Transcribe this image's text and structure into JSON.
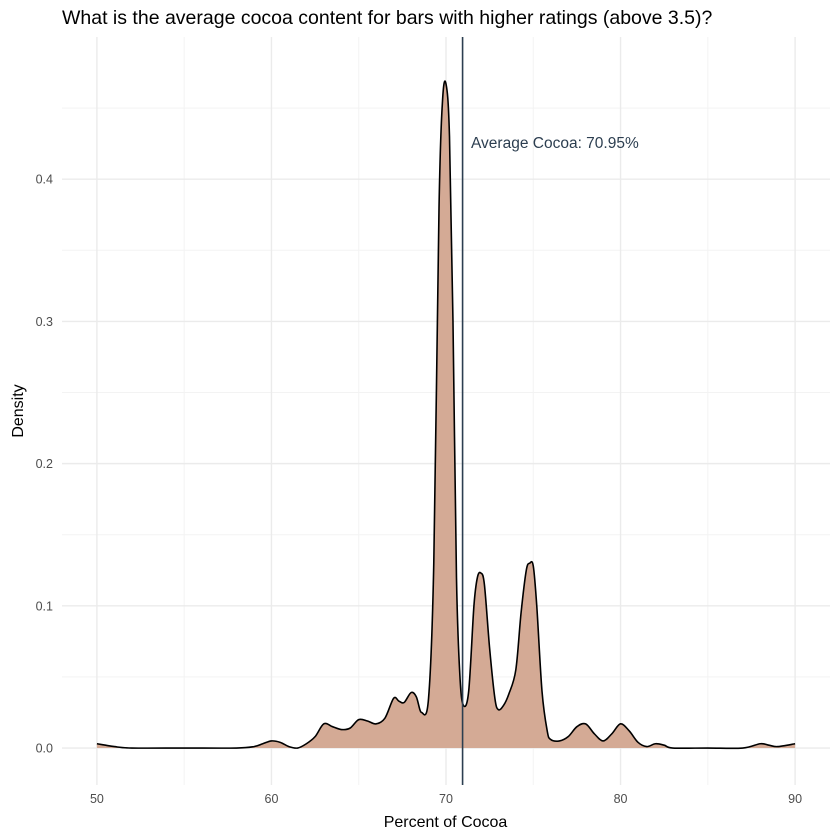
{
  "chart_data": {
    "type": "area",
    "title": "What is the average cocoa content for bars with higher ratings (above 3.5)?",
    "xlabel": "Percent of Cocoa",
    "ylabel": "Density",
    "xlim": [
      48,
      92
    ],
    "ylim": [
      -0.026,
      0.5
    ],
    "x_ticks": [
      50,
      60,
      70,
      80,
      90
    ],
    "x_tick_labels": [
      "50",
      "60",
      "70",
      "80",
      "90"
    ],
    "y_ticks": [
      0.0,
      0.1,
      0.2,
      0.3,
      0.4
    ],
    "y_tick_labels": [
      "0.0",
      "0.1",
      "0.2",
      "0.3",
      "0.4"
    ],
    "grid": true,
    "fill_color": "#d4aa95",
    "line_color": "#000000",
    "vline_color": "#2c3e50",
    "series": [
      {
        "x": [
          50,
          50.5,
          51,
          52,
          55,
          58,
          59,
          59.5,
          60,
          60.5,
          61,
          61.5,
          62,
          62.5,
          63,
          63.5,
          64,
          64.5,
          65,
          65.5,
          66,
          66.5,
          67,
          67.3,
          67.6,
          68,
          68.3,
          68.6,
          69,
          69.3,
          69.6,
          69.8,
          70,
          70.2,
          70.4,
          70.6,
          70.8,
          71,
          71.3,
          71.6,
          71.8,
          72,
          72.2,
          72.5,
          72.8,
          73,
          73.3,
          73.6,
          74,
          74.3,
          74.6,
          74.8,
          75,
          75.2,
          75.5,
          75.8,
          76,
          76.5,
          77,
          77.5,
          78,
          78.5,
          79,
          79.5,
          80,
          80.5,
          81,
          81.5,
          82,
          82.5,
          83,
          85,
          87,
          88,
          88.5,
          89,
          90
        ],
        "y": [
          0.003,
          0.002,
          0.001,
          0.0,
          0.0,
          0.0,
          0.001,
          0.003,
          0.005,
          0.004,
          0.001,
          0.0,
          0.003,
          0.008,
          0.017,
          0.015,
          0.013,
          0.014,
          0.02,
          0.019,
          0.017,
          0.021,
          0.035,
          0.033,
          0.032,
          0.039,
          0.036,
          0.025,
          0.035,
          0.13,
          0.38,
          0.455,
          0.467,
          0.43,
          0.3,
          0.12,
          0.05,
          0.03,
          0.04,
          0.1,
          0.12,
          0.123,
          0.115,
          0.07,
          0.035,
          0.027,
          0.03,
          0.038,
          0.055,
          0.095,
          0.125,
          0.13,
          0.128,
          0.1,
          0.04,
          0.012,
          0.006,
          0.005,
          0.008,
          0.015,
          0.017,
          0.01,
          0.005,
          0.01,
          0.017,
          0.012,
          0.004,
          0.001,
          0.003,
          0.002,
          0.0,
          0.0,
          0.0,
          0.003,
          0.002,
          0.001,
          0.003
        ]
      }
    ],
    "reference_line": {
      "x": 70.95,
      "label": "Average Cocoa: 70.95%"
    }
  }
}
